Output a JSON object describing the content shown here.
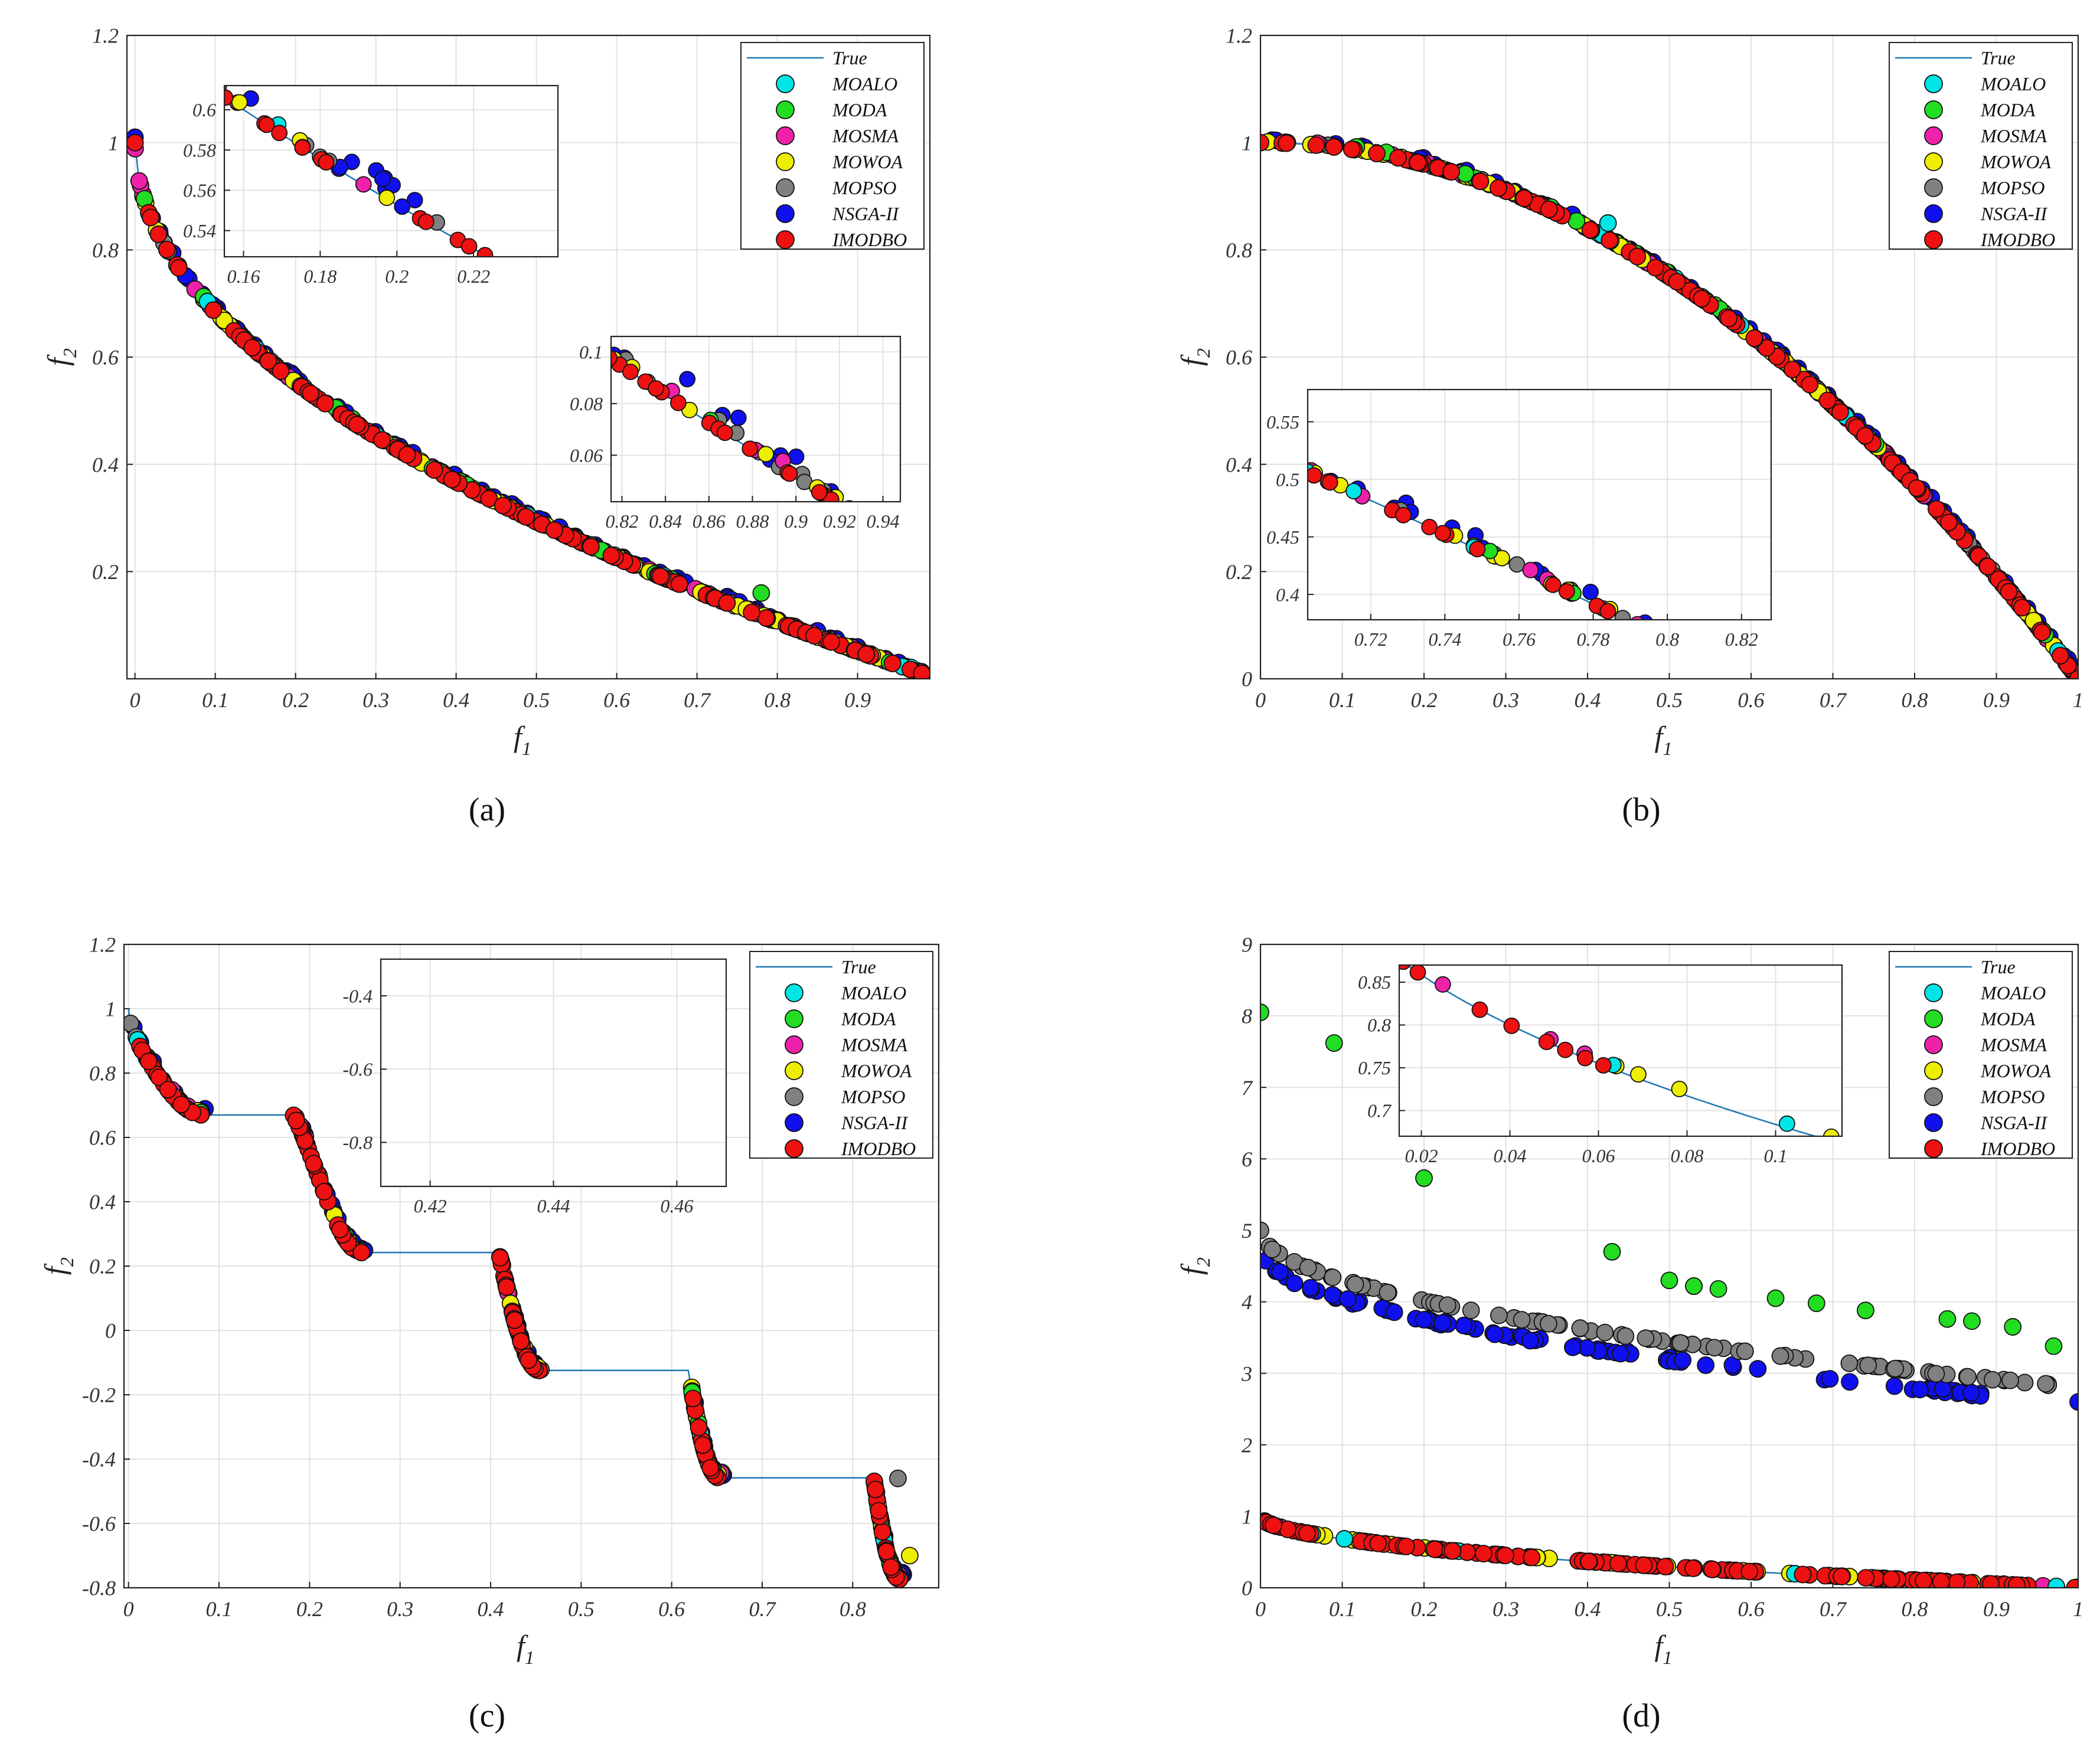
{
  "legend_labels": [
    "True",
    "MOALO",
    "MODA",
    "MOSMA",
    "MOWOA",
    "MOPSO",
    "NSGA-II",
    "IMODBO"
  ],
  "series_colors": {
    "True": "#1f77b4",
    "MOALO": "#00e5e5",
    "MODA": "#22dd22",
    "MOSMA": "#ee22aa",
    "MOWOA": "#eeee00",
    "MOPSO": "#808080",
    "NSGA-II": "#1010ee",
    "IMODBO": "#ee1111"
  },
  "chart_data": [
    {
      "id": "a",
      "type": "scatter",
      "caption": "(a)",
      "problem": "convex",
      "xlabel": "f",
      "xlabel_sub": "1",
      "ylabel": "f",
      "ylabel_sub": "2",
      "xlim": [
        -0.01,
        0.99
      ],
      "ylim": [
        0,
        1.2
      ],
      "xticks": [
        0,
        0.1,
        0.2,
        0.3,
        0.4,
        0.5,
        0.6,
        0.7,
        0.8,
        0.9
      ],
      "yticks": [
        0.2,
        0.4,
        0.6,
        0.8,
        1,
        1.2
      ],
      "insets": [
        {
          "xlim": [
            0.155,
            0.242
          ],
          "ylim": [
            0.527,
            0.612
          ],
          "xticks": [
            0.16,
            0.18,
            0.2,
            0.22
          ],
          "yticks": [
            0.54,
            0.56,
            0.58,
            0.6
          ]
        },
        {
          "xlim": [
            0.815,
            0.948
          ],
          "ylim": [
            0.042,
            0.106
          ],
          "xticks": [
            0.82,
            0.84,
            0.86,
            0.88,
            0.9,
            0.92,
            0.94
          ],
          "yticks": [
            0.06,
            0.08,
            0.1
          ]
        }
      ]
    },
    {
      "id": "b",
      "type": "scatter",
      "caption": "(b)",
      "problem": "concave",
      "xlabel": "f",
      "xlabel_sub": "1",
      "ylabel": "f",
      "ylabel_sub": "2",
      "xlim": [
        0,
        1
      ],
      "ylim": [
        0,
        1.2
      ],
      "xticks": [
        0,
        0.1,
        0.2,
        0.3,
        0.4,
        0.5,
        0.6,
        0.7,
        0.8,
        0.9,
        1
      ],
      "yticks": [
        0,
        0.2,
        0.4,
        0.6,
        0.8,
        1,
        1.2
      ],
      "insets": [
        {
          "xlim": [
            0.703,
            0.828
          ],
          "ylim": [
            0.378,
            0.578
          ],
          "xticks": [
            0.72,
            0.74,
            0.76,
            0.78,
            0.8,
            0.82
          ],
          "yticks": [
            0.4,
            0.45,
            0.5,
            0.55
          ]
        }
      ]
    },
    {
      "id": "c",
      "type": "scatter",
      "caption": "(c)",
      "problem": "disconnected",
      "xlabel": "f",
      "xlabel_sub": "1",
      "ylabel": "f",
      "ylabel_sub": "2",
      "xlim": [
        -0.005,
        0.895
      ],
      "ylim": [
        -0.8,
        1.2
      ],
      "xticks": [
        0,
        0.1,
        0.2,
        0.3,
        0.4,
        0.5,
        0.6,
        0.7,
        0.8
      ],
      "yticks": [
        -0.8,
        -0.6,
        -0.4,
        -0.2,
        0,
        0.2,
        0.4,
        0.6,
        0.8,
        1,
        1.2
      ],
      "insets": [
        {
          "xlim": [
            0.412,
            0.468
          ],
          "ylim": [
            -0.92,
            -0.3
          ],
          "xticks": [
            0.42,
            0.44,
            0.46
          ],
          "yticks": [
            -0.8,
            -0.6,
            -0.4
          ]
        }
      ]
    },
    {
      "id": "d",
      "type": "scatter",
      "caption": "(d)",
      "problem": "multimodal",
      "xlabel": "f",
      "xlabel_sub": "1",
      "ylabel": "f",
      "ylabel_sub": "2",
      "xlim": [
        0,
        1
      ],
      "ylim": [
        0,
        9
      ],
      "xticks": [
        0,
        0.1,
        0.2,
        0.3,
        0.4,
        0.5,
        0.6,
        0.7,
        0.8,
        0.9,
        1
      ],
      "yticks": [
        0,
        1,
        2,
        3,
        4,
        5,
        6,
        7,
        8,
        9
      ],
      "insets": [
        {
          "xlim": [
            0.015,
            0.115
          ],
          "ylim": [
            0.67,
            0.87
          ],
          "xticks": [
            0.02,
            0.04,
            0.06,
            0.08,
            0.1
          ],
          "yticks": [
            0.7,
            0.75,
            0.8,
            0.85
          ]
        }
      ],
      "moda_points": [
        [
          0,
          8.05
        ],
        [
          0.09,
          7.62
        ],
        [
          0.2,
          5.73
        ],
        [
          0.43,
          4.7
        ],
        [
          0.5,
          4.3
        ],
        [
          0.53,
          4.22
        ],
        [
          0.53,
          4.22
        ],
        [
          0.56,
          4.18
        ],
        [
          0.63,
          4.05
        ],
        [
          0.68,
          3.98
        ],
        [
          0.74,
          3.88
        ],
        [
          0.84,
          3.76
        ],
        [
          0.87,
          3.73
        ],
        [
          0.92,
          3.65
        ],
        [
          0.97,
          3.38
        ]
      ]
    }
  ]
}
